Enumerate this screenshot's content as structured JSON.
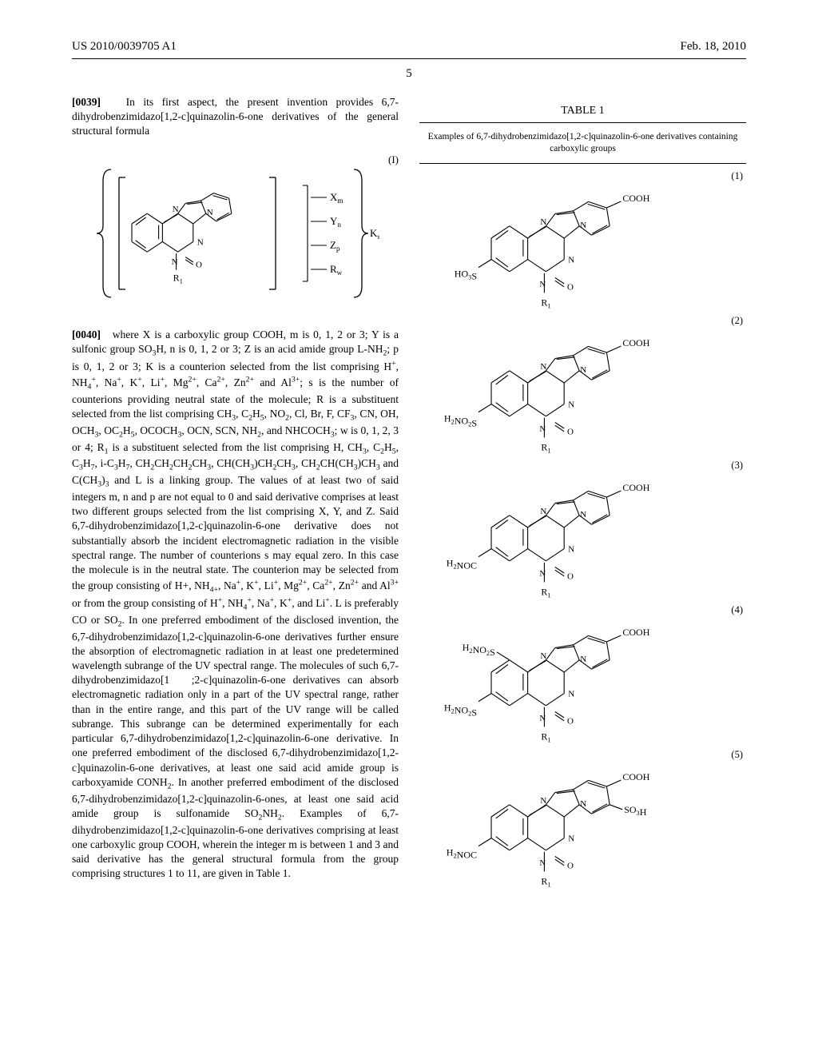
{
  "header": {
    "pub_number": "US 2010/0039705 A1",
    "pub_date": "Feb. 18, 2010"
  },
  "page_number": "5",
  "left_column": {
    "para1_num": "[0039]",
    "para1_text": "In its first aspect, the present invention provides 6,7-dihydrobenzimidazo[1,2-c]quinazolin-6-one derivatives of the general structural formula",
    "formula": {
      "label": "(I)",
      "side_labels": [
        "X",
        "Y",
        "Z",
        "R"
      ],
      "side_subs": [
        "m",
        "n",
        "p",
        "w"
      ],
      "outside_sub": "K",
      "outside_sub_suffix": "s",
      "r1_label": "R",
      "r1_sub": "1"
    },
    "para2_num": "[0040]",
    "para2_html": "where X is a carboxylic group COOH, m is 0, 1, 2 or 3; Y is a sulfonic group SO<sub>3</sub>H, n is 0, 1, 2 or 3; Z is an acid amide group L-NH<sub>2</sub>; p is 0, 1, 2 or 3; K is a counterion selected from the list comprising H<sup>+</sup>, NH<sub>4</sub><sup>+</sup>, Na<sup>+</sup>, K<sup>+</sup>, Li<sup>+</sup>, Mg<sup>2+</sup>, Ca<sup>2+</sup>, Zn<sup>2+</sup> and Al<sup>3+</sup>; s is the number of counterions providing neutral state of the molecule; R is a substituent selected from the list comprising CH<sub>3</sub>, C<sub>2</sub>H<sub>5</sub>, NO<sub>2</sub>, Cl, Br, F, CF<sub>3</sub>, CN, OH, OCH<sub>3</sub>, OC<sub>2</sub>H<sub>5</sub>, OCOCH<sub>3</sub>, OCN, SCN, NH<sub>2</sub>, and NHCOCH<sub>3</sub>; w is 0, 1, 2, 3 or 4; R<sub>1</sub> is a substituent selected from the list comprising H, CH<sub>3</sub>, C<sub>2</sub>H<sub>5</sub>, C<sub>3</sub>H<sub>7</sub>, i-C<sub>3</sub>H<sub>7</sub>, CH<sub>2</sub>CH<sub>2</sub>CH<sub>2</sub>CH<sub>3</sub>, CH(CH<sub>3</sub>)CH<sub>2</sub>CH<sub>3</sub>, CH<sub>2</sub>CH(CH<sub>3</sub>)CH<sub>3</sub> and C(CH<sub>3</sub>)<sub>3</sub> and L is a linking group. The values of at least two of said integers m, n and p are not equal to 0 and said derivative comprises at least two different groups selected from the list comprising X, Y, and Z. Said 6,7-dihydrobenzimidazo[1,2-c]quinazolin-6-one derivative does not substantially absorb the incident electromagnetic radiation in the visible spectral range. The number of counterions s may equal zero. In this case the molecule is in the neutral state. The counterion may be selected from the group consisting of H+, NH<sub>4+</sub>, Na<sup>+</sup>, K<sup>+</sup>, Li<sup>+</sup>, Mg<sup>2+</sup>, Ca<sup>2+</sup>, Zn<sup>2+</sup> and Al<sup>3+</sup> or from the group consisting of H<sup>+</sup>, NH<sub>4</sub><sup>+</sup>, Na<sup>+</sup>, K<sup>+</sup>, and Li<sup>+</sup>. L is preferably CO or SO<sub>2</sub>. In one preferred embodiment of the disclosed invention, the 6,7-dihydrobenzimidazo[1,2-c]quinazolin-6-one derivatives further ensure the absorption of electromagnetic radiation in at least one predetermined wavelength subrange of the UV spectral range. The molecules of such 6,7-dihydrobenzimidazo[1&nbsp;&nbsp;&nbsp;;2-c]quinazolin-6-one derivatives can absorb electromagnetic radiation only in a part of the UV spectral range, rather than in the entire range, and this part of the UV range will be called subrange. This subrange can be determined experimentally for each particular 6,7-dihydrobenzimidazo[1,2-c]quinazolin-6-one derivative. In one preferred embodiment of the disclosed 6,7-dihydrobenzimidazo[1,2-c]quinazolin-6-one derivatives, at least one said acid amide group is carboxyamide CONH<sub>2</sub>. In another preferred embodiment of the disclosed 6,7-dihydrobenzimidazo[1,2-c]quinazolin-6-ones, at least one said acid amide group is sulfonamide SO<sub>2</sub>NH<sub>2</sub>. Examples of 6,7-dihydrobenzimidazo[1,2-c]quinazolin-6-one derivatives comprising at least one carboxylic group COOH, wherein the integer m is between 1 and 3 and said derivative has the general structural formula from the group comprising structures 1 to 11, are given in Table 1."
  },
  "right_column": {
    "table_title": "TABLE 1",
    "table_caption": "Examples of 6,7-dihydrobenzimidazo[1,2-c]quinazolin-6-one derivatives containing carboxylic groups",
    "structures": [
      {
        "num": "(1)",
        "left_sub_html": "HO<sub>3</sub>S",
        "left_pos": "bottom",
        "right_top": "COOH",
        "extra_right": ""
      },
      {
        "num": "(2)",
        "left_sub_html": "H<sub>2</sub>NO<sub>2</sub>S",
        "left_pos": "bottom",
        "right_top": "COOH",
        "extra_right": ""
      },
      {
        "num": "(3)",
        "left_sub_html": "H<sub>2</sub>NOC",
        "left_pos": "bottom",
        "right_top": "COOH",
        "extra_right": ""
      },
      {
        "num": "(4)",
        "left_sub_html": "H<sub>2</sub>NO<sub>2</sub>S",
        "left_pos": "both",
        "right_top": "COOH",
        "extra_right": ""
      },
      {
        "num": "(5)",
        "left_sub_html": "H<sub>2</sub>NOC",
        "left_pos": "bottom",
        "right_top": "COOH",
        "extra_right": "SO<sub>3</sub>H"
      }
    ],
    "r1_label": "R",
    "r1_sub": "1"
  },
  "style": {
    "stroke": "#000000",
    "stroke_width": 1.1,
    "font_family": "Times New Roman",
    "chem_font_size": 11
  }
}
